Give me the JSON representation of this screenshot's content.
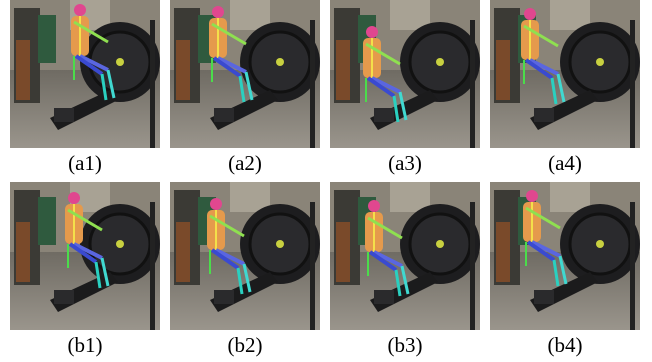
{
  "figure": {
    "panels": [
      {
        "label": "(a1)"
      },
      {
        "label": "(a2)"
      },
      {
        "label": "(a3)"
      },
      {
        "label": "(a4)"
      },
      {
        "label": "(b1)"
      },
      {
        "label": "(b2)"
      },
      {
        "label": "(b3)"
      },
      {
        "label": "(b4)"
      }
    ]
  }
}
